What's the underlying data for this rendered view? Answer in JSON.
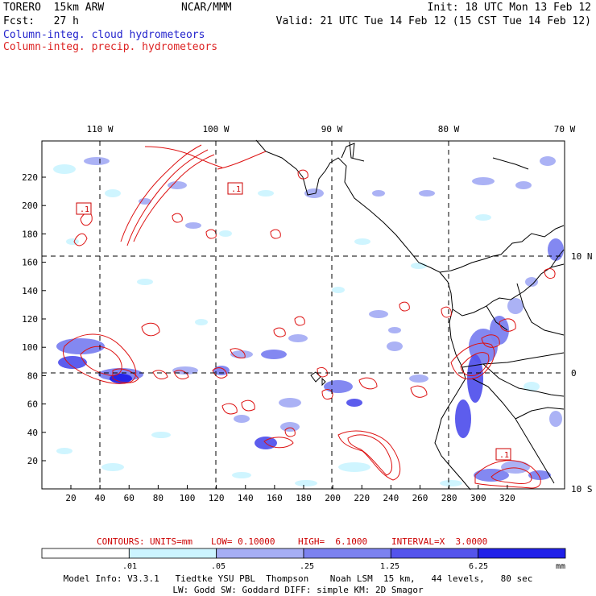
{
  "header": {
    "line1_left": "TORERO  15km ARW",
    "line1_center": "NCAR/MMM",
    "line1_right": "Init: 18 UTC Mon 13 Feb 12",
    "line2_left": "Fcst:   27 h",
    "line2_right": "Valid: 21 UTC Tue 14 Feb 12 (15 CST Tue 14 Feb 12)",
    "field1": "Column-integ. cloud hydrometeors",
    "field2": "Column-integ. precip. hydrometeors"
  },
  "map": {
    "top_lon_labels": [
      "110 W",
      "100 W",
      "90 W",
      "80 W",
      "70 W"
    ],
    "right_lat_labels": [
      "10 N",
      "0",
      "10 S"
    ],
    "y_ticks": [
      "20",
      "40",
      "60",
      "80",
      "100",
      "120",
      "140",
      "160",
      "180",
      "200",
      "220"
    ],
    "x_ticks": [
      "20",
      "40",
      "60",
      "80",
      "100",
      "120",
      "140",
      "160",
      "180",
      "200",
      "220",
      "240",
      "260",
      "280",
      "300",
      "320"
    ],
    "contour_box_labels": [
      ".1",
      ".1",
      ".1"
    ]
  },
  "contour_info": {
    "contours": "CONTOURS:",
    "units": "UNITS=mm",
    "low": "LOW= 0.10000",
    "high": "HIGH=  6.1000",
    "interval": "INTERVAL=X  3.0000"
  },
  "colorbar": {
    "labels": [
      ".01",
      ".05",
      ".25",
      "1.25",
      "6.25"
    ],
    "unit": "mm",
    "colors": [
      "#ffffff",
      "#ccf4ff",
      "#a6aef4",
      "#7c82f0",
      "#5454ec",
      "#2020e8"
    ]
  },
  "model_info": {
    "line1": "Model Info: V3.3.1   Tiedtke YSU PBL  Thompson    Noah LSM  15 km,   44 levels,   80 sec",
    "line2": "LW: Godd SW: Goddard DIFF: simple KM: 2D Smagor"
  }
}
